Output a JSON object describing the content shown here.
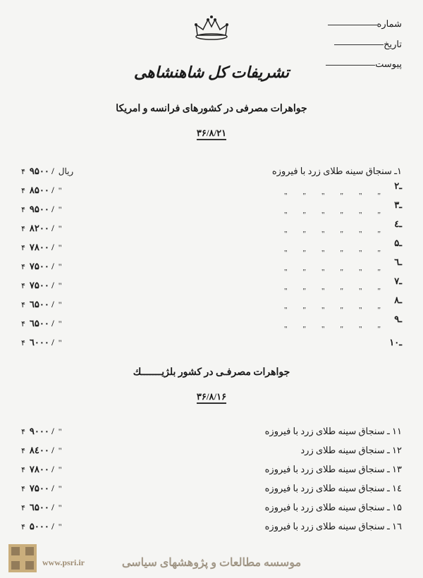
{
  "header": {
    "field1": "شماره",
    "field2": "تاریخ",
    "field3": "پیوست"
  },
  "title": "تشریفات کل شاهنشاهی",
  "section1": {
    "subtitle": "جواهرات مصرفی در کشورهای فرانسه و امریکا",
    "date": "۳۶/۸/۲۱",
    "first_desc": "۱ـ سنجاق سینه طلای زرد با فیروزه",
    "currency": "ریال",
    "rows": [
      {
        "n": "ـ۲",
        "amt": "۹۵۰۰ /"
      },
      {
        "n": "ـ۳",
        "amt": "۸۵۰۰ /"
      },
      {
        "n": "ـ٤",
        "amt": "۹۵۰۰ /"
      },
      {
        "n": "ـ۵",
        "amt": "۸۲۰۰ /"
      },
      {
        "n": "ـ٦",
        "amt": "۷۸۰۰ /"
      },
      {
        "n": "ـ۷",
        "amt": "۷۵۰۰ /"
      },
      {
        "n": "ـ۸",
        "amt": "۷۵۰۰ /"
      },
      {
        "n": "ـ۹",
        "amt": "٦۵۰۰ /"
      },
      {
        "n": "ـ۱۰",
        "amt": "٦۵۰۰ /"
      }
    ],
    "last_amt": "٦۰۰۰ /"
  },
  "section2": {
    "subtitle": "جواهرات مصرفـی در کشور بلژیـــــــك",
    "date": "۳۶/۸/۱۶",
    "rows": [
      {
        "n": "۱۱ ـ",
        "desc": "سنجاق سینه طلای زرد با فیروزه",
        "amt": "۹۰۰۰ /"
      },
      {
        "n": "۱۲ ـ",
        "desc": "سنجاق سینه طلای زرد",
        "amt": "۸٤۰۰ /"
      },
      {
        "n": "۱۳ ـ",
        "desc": "سنجاق سینه طلای زرد با فیروزه",
        "amt": "۷۸۰۰ /"
      },
      {
        "n": "۱٤ ـ",
        "desc": "سنجاق سینه طلای زرد با فیروزه",
        "amt": "۷۵۰۰ /"
      },
      {
        "n": "۱۵ ـ",
        "desc": "سنجاق سینه طلای زرد با فیروزه",
        "amt": "٦۵۰۰ /"
      },
      {
        "n": "۱٦ ـ",
        "desc": "سنجاق سینه طلای زرد با فیروزه",
        "amt": "۵۰۰۰ /"
      }
    ]
  },
  "watermark": {
    "text": "موسسه مطالعات و پژوهشهای سیاسی",
    "url": "www.psri.ir"
  },
  "colors": {
    "bg": "#f5f5f3",
    "text": "#1a1a1a",
    "wm": "rgba(80,60,30,0.5)",
    "wm_logo": "#b8914a"
  }
}
